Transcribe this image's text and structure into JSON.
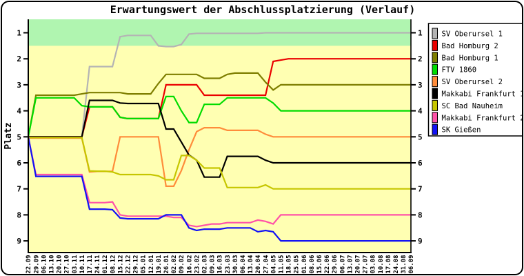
{
  "window": {
    "background": "#ffffff",
    "frame_color": "#000000"
  },
  "chart_data": {
    "type": "line",
    "title": "Erwartungswert der Abschlussplatzierung (Verlauf)",
    "xlabel": "",
    "ylabel": "Platz",
    "y_ticks": [
      1,
      2,
      3,
      4,
      5,
      6,
      7,
      8,
      9
    ],
    "y_axis_inverted": true,
    "ylim": [
      0.5,
      9.45
    ],
    "grid": false,
    "plot_background": "#ffffb2",
    "highlight_band": {
      "from_place": 0.5,
      "to_place": 1.5,
      "color": "#b0f5b0",
      "meaning": "first place zone"
    },
    "legend_position": "right",
    "x_tick_labels": [
      "22.09",
      "29.09",
      "06.10",
      "13.10",
      "20.10",
      "27.10",
      "03.11",
      "10.11",
      "17.11",
      "24.11",
      "01.12",
      "08.12",
      "15.12",
      "22.12",
      "29.12",
      "05.01",
      "12.01",
      "19.01",
      "26.01",
      "02.02",
      "09.02",
      "16.02",
      "23.02",
      "02.03",
      "09.03",
      "16.03",
      "23.03",
      "30.03",
      "06.04",
      "13.04",
      "20.04",
      "27.04",
      "04.05",
      "11.05",
      "18.05",
      "25.05",
      "01.06",
      "08.06",
      "15.06",
      "22.06",
      "29.06",
      "06.07",
      "13.07",
      "20.07",
      "27.07",
      "03.08",
      "10.08",
      "17.08",
      "24.08",
      "31.08",
      "06.09"
    ],
    "series": [
      {
        "name": "SV Oberursel 1",
        "color": "#b4b4b4",
        "final_place": 1,
        "values": [
          5,
          5,
          5,
          5,
          5,
          5,
          5,
          5,
          2.3,
          2.3,
          2.3,
          2.3,
          1.15,
          1.1,
          1.1,
          1.1,
          1.1,
          1.5,
          1.53,
          1.53,
          1.45,
          1.05,
          1.02,
          1.02,
          1.02,
          1.02,
          1.02,
          1.02,
          1.02,
          1.02,
          1.02,
          1,
          1,
          1,
          1,
          1,
          1,
          1,
          1,
          1,
          1,
          1,
          1,
          1,
          1,
          1,
          1,
          1,
          1,
          1,
          1
        ]
      },
      {
        "name": "Bad Homburg 2",
        "color": "#ea0000",
        "final_place": 2,
        "values": [
          5,
          5,
          5,
          5,
          5,
          5,
          5,
          5,
          3.85,
          3.85,
          3.85,
          3.85,
          4.25,
          4.3,
          4.3,
          4.3,
          4.3,
          4.3,
          3,
          3,
          3,
          3,
          3,
          3.4,
          3.4,
          3.4,
          3.4,
          3.4,
          3.4,
          3.4,
          3.4,
          3.4,
          2.1,
          2.05,
          2,
          2,
          2,
          2,
          2,
          2,
          2,
          2,
          2,
          2,
          2,
          2,
          2,
          2,
          2,
          2,
          2
        ]
      },
      {
        "name": "Bad Homburg 1",
        "color": "#7e7e00",
        "final_place": 3,
        "values": [
          5,
          3.4,
          3.4,
          3.4,
          3.4,
          3.4,
          3.4,
          3.35,
          3.3,
          3.3,
          3.3,
          3.3,
          3.3,
          3.35,
          3.35,
          3.35,
          3.35,
          2.95,
          2.6,
          2.6,
          2.6,
          2.6,
          2.6,
          2.75,
          2.75,
          2.75,
          2.6,
          2.55,
          2.55,
          2.55,
          2.55,
          2.9,
          3.2,
          3,
          3,
          3,
          3,
          3,
          3,
          3,
          3,
          3,
          3,
          3,
          3,
          3,
          3,
          3,
          3,
          3,
          3
        ]
      },
      {
        "name": "FTV 1860",
        "color": "#00dc00",
        "final_place": 4,
        "values": [
          5,
          3.5,
          3.5,
          3.5,
          3.5,
          3.5,
          3.5,
          3.8,
          3.85,
          3.85,
          3.85,
          3.85,
          4.25,
          4.3,
          4.3,
          4.3,
          4.3,
          4.3,
          3.45,
          3.45,
          4,
          4.45,
          4.45,
          3.75,
          3.75,
          3.75,
          3.5,
          3.5,
          3.5,
          3.5,
          3.5,
          3.5,
          3.7,
          4,
          4,
          4,
          4,
          4,
          4,
          4,
          4,
          4,
          4,
          4,
          4,
          4,
          4,
          4,
          4,
          4,
          4
        ]
      },
      {
        "name": "SV Oberursel 2",
        "color": "#ff8c3a",
        "final_place": 5,
        "values": [
          5.05,
          5.05,
          5.05,
          5.05,
          5.05,
          5.05,
          5.05,
          5.05,
          6.35,
          6.33,
          6.33,
          6.33,
          5,
          5,
          5,
          5,
          5,
          5,
          6.9,
          6.9,
          6.3,
          5.5,
          4.8,
          4.65,
          4.65,
          4.65,
          4.75,
          4.75,
          4.75,
          4.75,
          4.75,
          4.9,
          5,
          5,
          5,
          5,
          5,
          5,
          5,
          5,
          5,
          5,
          5,
          5,
          5,
          5,
          5,
          5,
          5,
          5,
          5
        ]
      },
      {
        "name": "Makkabi Frankfurt 1",
        "color": "#000000",
        "final_place": 6,
        "values": [
          5,
          5,
          5,
          5,
          5,
          5,
          5,
          5,
          3.6,
          3.6,
          3.6,
          3.6,
          3.7,
          3.72,
          3.72,
          3.72,
          3.72,
          3.72,
          4.7,
          4.7,
          5.2,
          5.7,
          5.9,
          6.55,
          6.55,
          6.55,
          5.75,
          5.75,
          5.75,
          5.75,
          5.75,
          5.9,
          6,
          6,
          6,
          6,
          6,
          6,
          6,
          6,
          6,
          6,
          6,
          6,
          6,
          6,
          6,
          6,
          6,
          6,
          6
        ]
      },
      {
        "name": "SC Bad Nauheim",
        "color": "#c6c600",
        "final_place": 7,
        "values": [
          5.03,
          5.03,
          5.03,
          5.03,
          5.03,
          5.03,
          5.03,
          5.03,
          6.31,
          6.32,
          6.32,
          6.35,
          6.45,
          6.45,
          6.45,
          6.45,
          6.45,
          6.5,
          6.65,
          6.65,
          5.72,
          5.72,
          5.9,
          6.2,
          6.2,
          6.2,
          6.95,
          6.95,
          6.95,
          6.95,
          6.95,
          6.85,
          7,
          7,
          7,
          7,
          7,
          7,
          7,
          7,
          7,
          7,
          7,
          7,
          7,
          7,
          7,
          7,
          7,
          7,
          7
        ]
      },
      {
        "name": "Makkabi Frankfurt 2",
        "color": "#ff52a8",
        "final_place": 8,
        "values": [
          5,
          6.45,
          6.45,
          6.45,
          6.45,
          6.45,
          6.45,
          6.45,
          7.53,
          7.53,
          7.53,
          7.5,
          8,
          8.05,
          8.05,
          8.05,
          8.05,
          8.05,
          8.05,
          8.1,
          8.1,
          8.4,
          8.45,
          8.4,
          8.35,
          8.35,
          8.3,
          8.3,
          8.3,
          8.3,
          8.2,
          8.25,
          8.35,
          8,
          8,
          8,
          8,
          8,
          8,
          8,
          8,
          8,
          8,
          8,
          8,
          8,
          8,
          8,
          8,
          8,
          8
        ]
      },
      {
        "name": "SK Gießen",
        "color": "#1313f5",
        "final_place": 9,
        "values": [
          5,
          6.52,
          6.52,
          6.52,
          6.52,
          6.52,
          6.52,
          6.52,
          7.78,
          7.78,
          7.78,
          7.8,
          8.12,
          8.15,
          8.15,
          8.15,
          8.15,
          8.15,
          8,
          8,
          8,
          8.5,
          8.6,
          8.55,
          8.55,
          8.55,
          8.5,
          8.5,
          8.5,
          8.5,
          8.65,
          8.6,
          8.65,
          9,
          9,
          9,
          9,
          9,
          9,
          9,
          9,
          9,
          9,
          9,
          9,
          9,
          9,
          9,
          9,
          9,
          9
        ]
      }
    ]
  }
}
